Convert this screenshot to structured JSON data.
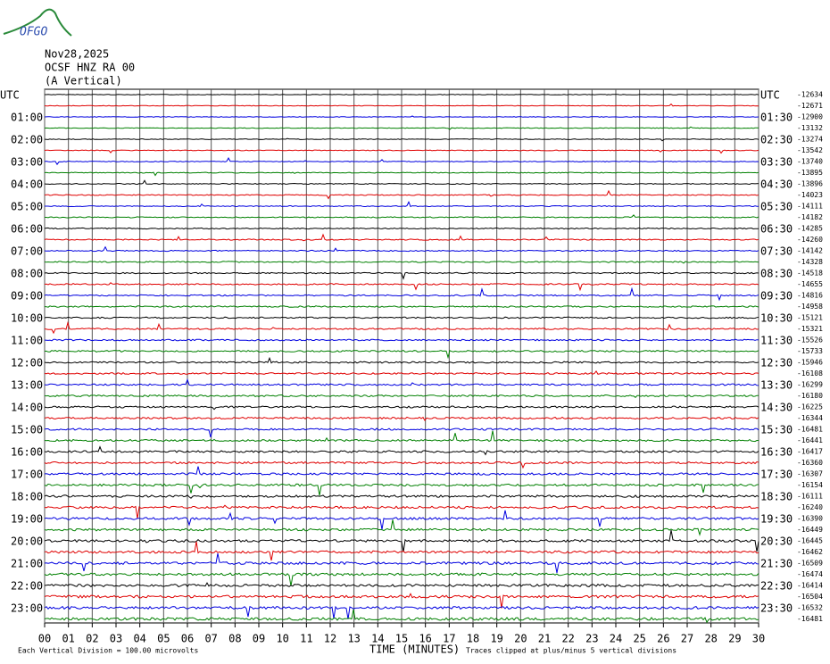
{
  "logo": "OFGO",
  "header": {
    "date": "Nov28,2025",
    "station": "OCSF HNZ RA 00",
    "component": "(A Vertical)"
  },
  "left_labels": [
    "UTC",
    "01:00",
    "02:00",
    "03:00",
    "04:00",
    "05:00",
    "06:00",
    "07:00",
    "08:00",
    "09:00",
    "10:00",
    "11:00",
    "12:00",
    "13:00",
    "14:00",
    "15:00",
    "16:00",
    "17:00",
    "18:00",
    "19:00",
    "20:00",
    "21:00",
    "22:00",
    "23:00"
  ],
  "right_labels": [
    "UTC",
    "01:30",
    "02:30",
    "03:30",
    "04:30",
    "05:30",
    "06:30",
    "07:30",
    "08:30",
    "09:30",
    "10:30",
    "11:30",
    "12:30",
    "13:30",
    "14:30",
    "15:30",
    "16:30",
    "17:30",
    "18:30",
    "19:30",
    "20:30",
    "21:30",
    "22:30",
    "23:30"
  ],
  "right_values": [
    "-12634",
    "-12671",
    "-12900",
    "-13132",
    "-13274",
    "-13542",
    "-13740",
    "-13895",
    "-13896",
    "-14023",
    "-14111",
    "-14182",
    "-14285",
    "-14260",
    "-14142",
    "-14328",
    "-14518",
    "-14655",
    "-14816",
    "-14958",
    "-15121",
    "-15321",
    "-15526",
    "-15733",
    "-15946",
    "-16108",
    "-16299",
    "-16180",
    "-16225",
    "-16344",
    "-16481",
    "-16441",
    "-16417",
    "-16360",
    "-16307",
    "-16154",
    "-16111",
    "-16240",
    "-16390",
    "-16449",
    "-16445",
    "-16462",
    "-16509",
    "-16474",
    "-16414",
    "-16504",
    "-16532",
    "-16481"
  ],
  "x_labels": [
    "00",
    "01",
    "02",
    "03",
    "04",
    "05",
    "06",
    "07",
    "08",
    "09",
    "10",
    "11",
    "12",
    "13",
    "14",
    "15",
    "16",
    "17",
    "18",
    "19",
    "20",
    "21",
    "22",
    "23",
    "24",
    "25",
    "26",
    "27",
    "28",
    "29",
    "30"
  ],
  "footer": {
    "scale": "Each Vertical Division =  100.00 microvolts",
    "axis_title": "TIME (MINUTES)",
    "clip_note": "Traces clipped at plus/minus 5 vertical divisions"
  }
}
